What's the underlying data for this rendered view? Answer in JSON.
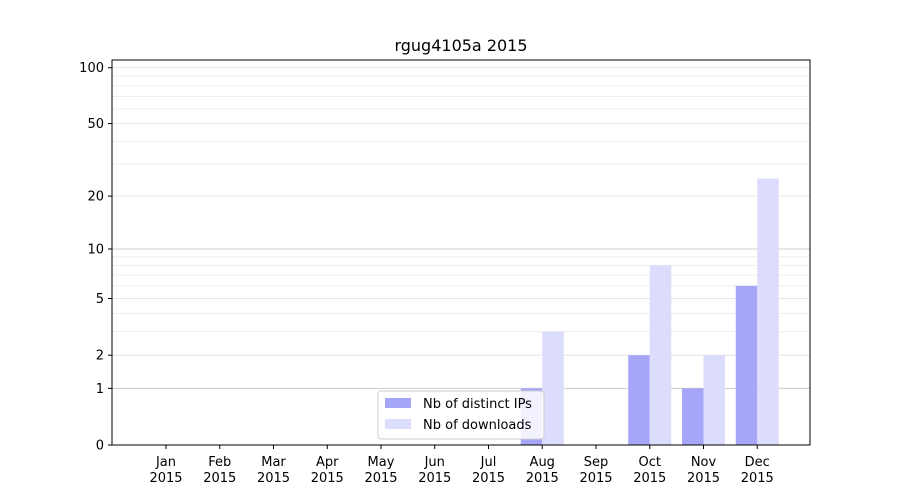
{
  "chart_data": {
    "type": "bar",
    "title": "rgug4105a 2015",
    "xlabel": "",
    "ylabel": "",
    "y_scale": "symlog",
    "ylim": [
      0,
      110
    ],
    "categories": [
      {
        "month": "Jan",
        "year": "2015"
      },
      {
        "month": "Feb",
        "year": "2015"
      },
      {
        "month": "Mar",
        "year": "2015"
      },
      {
        "month": "Apr",
        "year": "2015"
      },
      {
        "month": "May",
        "year": "2015"
      },
      {
        "month": "Jun",
        "year": "2015"
      },
      {
        "month": "Jul",
        "year": "2015"
      },
      {
        "month": "Aug",
        "year": "2015"
      },
      {
        "month": "Sep",
        "year": "2015"
      },
      {
        "month": "Oct",
        "year": "2015"
      },
      {
        "month": "Nov",
        "year": "2015"
      },
      {
        "month": "Dec",
        "year": "2015"
      }
    ],
    "y_ticks": [
      "0",
      "1",
      "2",
      "5",
      "10",
      "20",
      "50",
      "100"
    ],
    "series": [
      {
        "name": "Nb of distinct IPs",
        "color": "#a6a6f8",
        "values": [
          0,
          0,
          0,
          0,
          0,
          0,
          0,
          1,
          0,
          2,
          1,
          6
        ]
      },
      {
        "name": "Nb of downloads",
        "color": "#dcdcfc",
        "values": [
          0,
          0,
          0,
          0,
          0,
          0,
          0,
          3,
          0,
          8,
          2,
          25
        ]
      }
    ],
    "grid": true,
    "legend_position": "bottom-center"
  }
}
